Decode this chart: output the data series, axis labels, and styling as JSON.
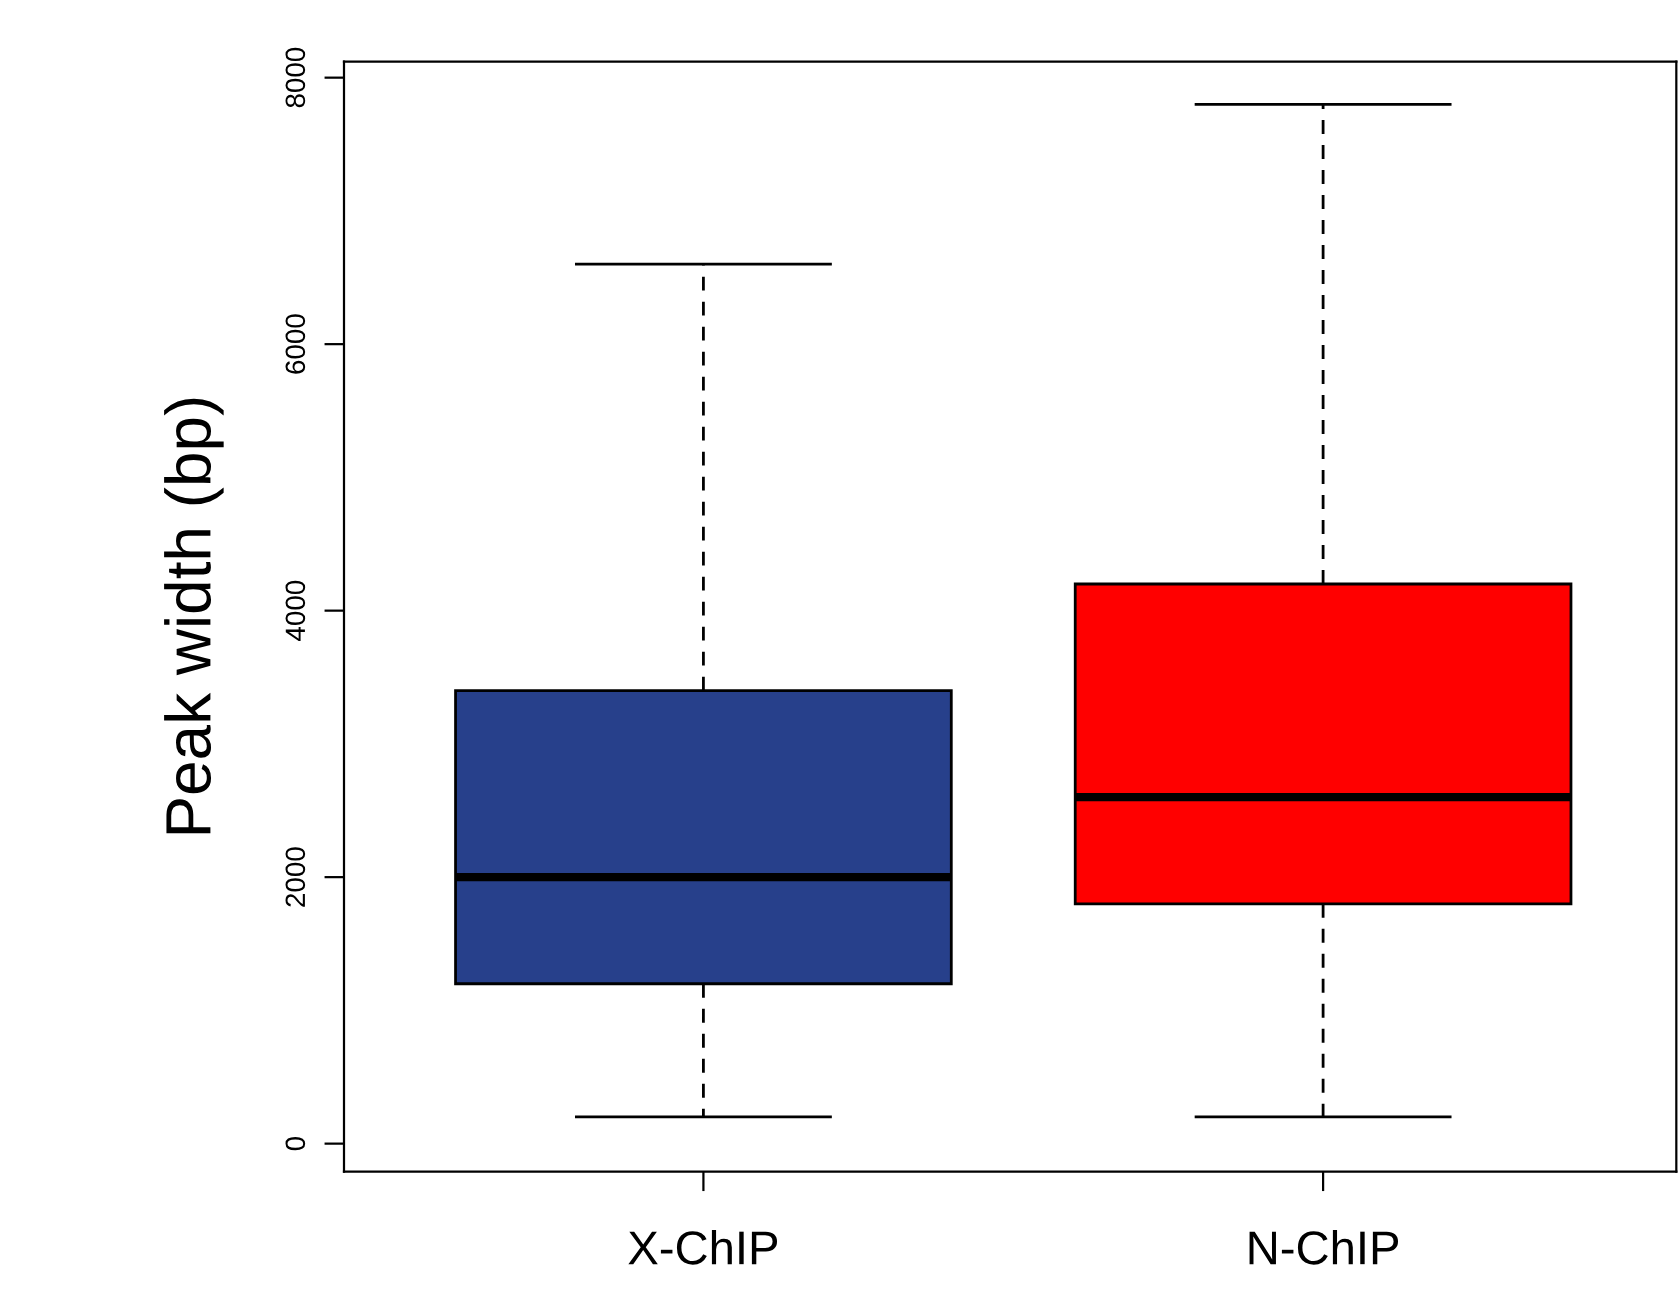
{
  "chart_data": {
    "type": "box",
    "ylabel": "Peak width (bp)",
    "categories": [
      "X-ChIP",
      "N-ChIP"
    ],
    "colors": [
      "#27408b",
      "#ff0000"
    ],
    "boxes": [
      {
        "low": 200,
        "q1": 1200,
        "median": 2000,
        "q3": 3400,
        "high": 6600
      },
      {
        "low": 200,
        "q1": 1800,
        "median": 2600,
        "q3": 4200,
        "high": 7800
      }
    ],
    "ylim": [
      -210,
      8120
    ],
    "yticks": [
      0,
      2000,
      4000,
      6000,
      8000
    ],
    "grid": false,
    "legend": false
  }
}
